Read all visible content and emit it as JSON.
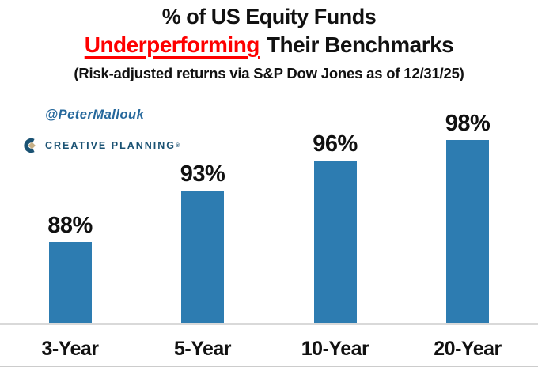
{
  "header": {
    "title_line1": "% of US Equity Funds",
    "title_line2_highlight": "Underperforming",
    "title_line2_rest": "Their Benchmarks",
    "caption": "(Risk-adjusted returns via S&P Dow Jones as of 12/31/25)"
  },
  "branding": {
    "handle": "@PeterMallouk",
    "logo_text": "CREATIVE PLANNING",
    "logo_trademark": "®"
  },
  "colors": {
    "bar_blue": "#2d7cb1",
    "highlight_red": "#fe0000",
    "text_black": "#111111",
    "axis_line_gray": "#d9d9d9",
    "handle_blue": "#26689c",
    "logo_navy": "#1a5273",
    "logo_gold": "#c7b087"
  },
  "chart_data": {
    "type": "bar",
    "title": "% of US Equity Funds Underperforming Their Benchmarks",
    "subtitle": "(Risk-adjusted returns via S&P Dow Jones as of 12/31/25)",
    "categories": [
      "3-Year",
      "5-Year",
      "10-Year",
      "20-Year"
    ],
    "values": [
      88,
      93,
      96,
      98
    ],
    "value_labels": [
      "88%",
      "93%",
      "96%",
      "98%"
    ],
    "unit": "%",
    "ylim": [
      80,
      100
    ],
    "grid": false,
    "legend": false,
    "data_labels": "above-bars",
    "bar_color": "#2d7cb1"
  }
}
